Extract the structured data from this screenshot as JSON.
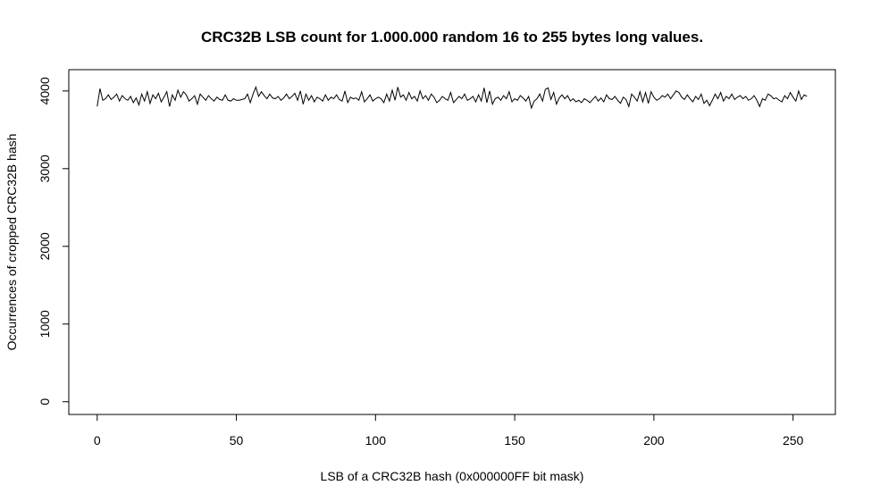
{
  "chart_data": {
    "type": "line",
    "title": "CRC32B LSB count for 1.000.000 random 16 to 255 bytes long values.",
    "x_label": "LSB of a CRC32B hash (0x000000FF bit mask)",
    "y_label": "Occurrences of cropped CRC32B hash",
    "color": "#000000",
    "x": [
      0,
      1,
      2,
      3,
      4,
      5,
      6,
      7,
      8,
      9,
      10,
      11,
      12,
      13,
      14,
      15,
      16,
      17,
      18,
      19,
      20,
      21,
      22,
      23,
      24,
      25,
      26,
      27,
      28,
      29,
      30,
      31,
      32,
      33,
      34,
      35,
      36,
      37,
      38,
      39,
      40,
      41,
      42,
      43,
      44,
      45,
      46,
      47,
      48,
      49,
      50,
      51,
      52,
      53,
      54,
      55,
      56,
      57,
      58,
      59,
      60,
      61,
      62,
      63,
      64,
      65,
      66,
      67,
      68,
      69,
      70,
      71,
      72,
      73,
      74,
      75,
      76,
      77,
      78,
      79,
      80,
      81,
      82,
      83,
      84,
      85,
      86,
      87,
      88,
      89,
      90,
      91,
      92,
      93,
      94,
      95,
      96,
      97,
      98,
      99,
      100,
      101,
      102,
      103,
      104,
      105,
      106,
      107,
      108,
      109,
      110,
      111,
      112,
      113,
      114,
      115,
      116,
      117,
      118,
      119,
      120,
      121,
      122,
      123,
      124,
      125,
      126,
      127,
      128,
      129,
      130,
      131,
      132,
      133,
      134,
      135,
      136,
      137,
      138,
      139,
      140,
      141,
      142,
      143,
      144,
      145,
      146,
      147,
      148,
      149,
      150,
      151,
      152,
      153,
      154,
      155,
      156,
      157,
      158,
      159,
      160,
      161,
      162,
      163,
      164,
      165,
      166,
      167,
      168,
      169,
      170,
      171,
      172,
      173,
      174,
      175,
      176,
      177,
      178,
      179,
      180,
      181,
      182,
      183,
      184,
      185,
      186,
      187,
      188,
      189,
      190,
      191,
      192,
      193,
      194,
      195,
      196,
      197,
      198,
      199,
      200,
      201,
      202,
      203,
      204,
      205,
      206,
      207,
      208,
      209,
      210,
      211,
      212,
      213,
      214,
      215,
      216,
      217,
      218,
      219,
      220,
      221,
      222,
      223,
      224,
      225,
      226,
      227,
      228,
      229,
      230,
      231,
      232,
      233,
      234,
      235,
      236,
      237,
      238,
      239,
      240,
      241,
      242,
      243,
      244,
      245,
      246,
      247,
      248,
      249,
      250,
      251,
      252,
      253,
      254,
      255
    ],
    "values": [
      3800,
      4030,
      3880,
      3900,
      3950,
      3890,
      3920,
      3960,
      3870,
      3940,
      3900,
      3880,
      3930,
      3850,
      3910,
      3820,
      3960,
      3870,
      3990,
      3840,
      3950,
      3900,
      3970,
      3860,
      3920,
      3990,
      3800,
      3950,
      3880,
      4010,
      3920,
      3990,
      3950,
      3870,
      3900,
      3940,
      3830,
      3960,
      3920,
      3880,
      3940,
      3900,
      3870,
      3920,
      3890,
      3880,
      3950,
      3880,
      3870,
      3900,
      3880,
      3880,
      3890,
      3900,
      3960,
      3850,
      3960,
      4050,
      3930,
      3990,
      3940,
      3900,
      3960,
      3910,
      3900,
      3930,
      3880,
      3910,
      3960,
      3900,
      3930,
      3970,
      3880,
      4000,
      3830,
      3960,
      3880,
      3940,
      3860,
      3920,
      3900,
      3870,
      3950,
      3880,
      3920,
      3900,
      3950,
      3890,
      3870,
      4000,
      3850,
      3920,
      3900,
      3910,
      3880,
      3990,
      3860,
      3900,
      3950,
      3870,
      3900,
      3920,
      3900,
      3850,
      3960,
      3870,
      4010,
      3880,
      4050,
      3920,
      3950,
      3880,
      3980,
      3900,
      3930,
      3870,
      4000,
      3900,
      3940,
      3880,
      3960,
      3920,
      3850,
      3880,
      3930,
      3900,
      3880,
      3980,
      3850,
      3890,
      3930,
      3900,
      3960,
      3880,
      3900,
      3930,
      3860,
      3950,
      3870,
      4040,
      3850,
      4000,
      3830,
      3900,
      3920,
      3880,
      3940,
      3900,
      3990,
      3860,
      3900,
      3880,
      3940,
      3910,
      3870,
      3930,
      3780,
      3870,
      3900,
      3960,
      3870,
      4020,
      4040,
      3890,
      3980,
      3830,
      3910,
      3950,
      3900,
      3940,
      3870,
      3900,
      3860,
      3880,
      3850,
      3900,
      3880,
      3850,
      3890,
      3930,
      3870,
      3910,
      3860,
      3950,
      3900,
      3890,
      3930,
      3880,
      3840,
      3920,
      3890,
      3800,
      3960,
      3920,
      3870,
      3990,
      3860,
      3980,
      3840,
      3990,
      3920,
      3880,
      3900,
      3940,
      3920,
      3960,
      3900,
      3950,
      4000,
      3980,
      3920,
      3890,
      3950,
      3900,
      3860,
      3930,
      3890,
      3960,
      3840,
      3880,
      3810,
      3880,
      3960,
      3900,
      3980,
      3870,
      3930,
      3900,
      3960,
      3890,
      3920,
      3940,
      3900,
      3930,
      3880,
      3900,
      3940,
      3880,
      3800,
      3900,
      3880,
      3960,
      3940,
      3900,
      3910,
      3880,
      3860,
      3940,
      3900,
      3980,
      3920,
      3870,
      4000,
      3890,
      3950,
      3930
    ],
    "xlim": [
      -10.2,
      265.2
    ],
    "ylim": [
      -164,
      4274
    ],
    "xticks": [
      0,
      50,
      100,
      150,
      200,
      250
    ],
    "yticks": [
      0,
      1000,
      2000,
      3000,
      4000
    ]
  }
}
